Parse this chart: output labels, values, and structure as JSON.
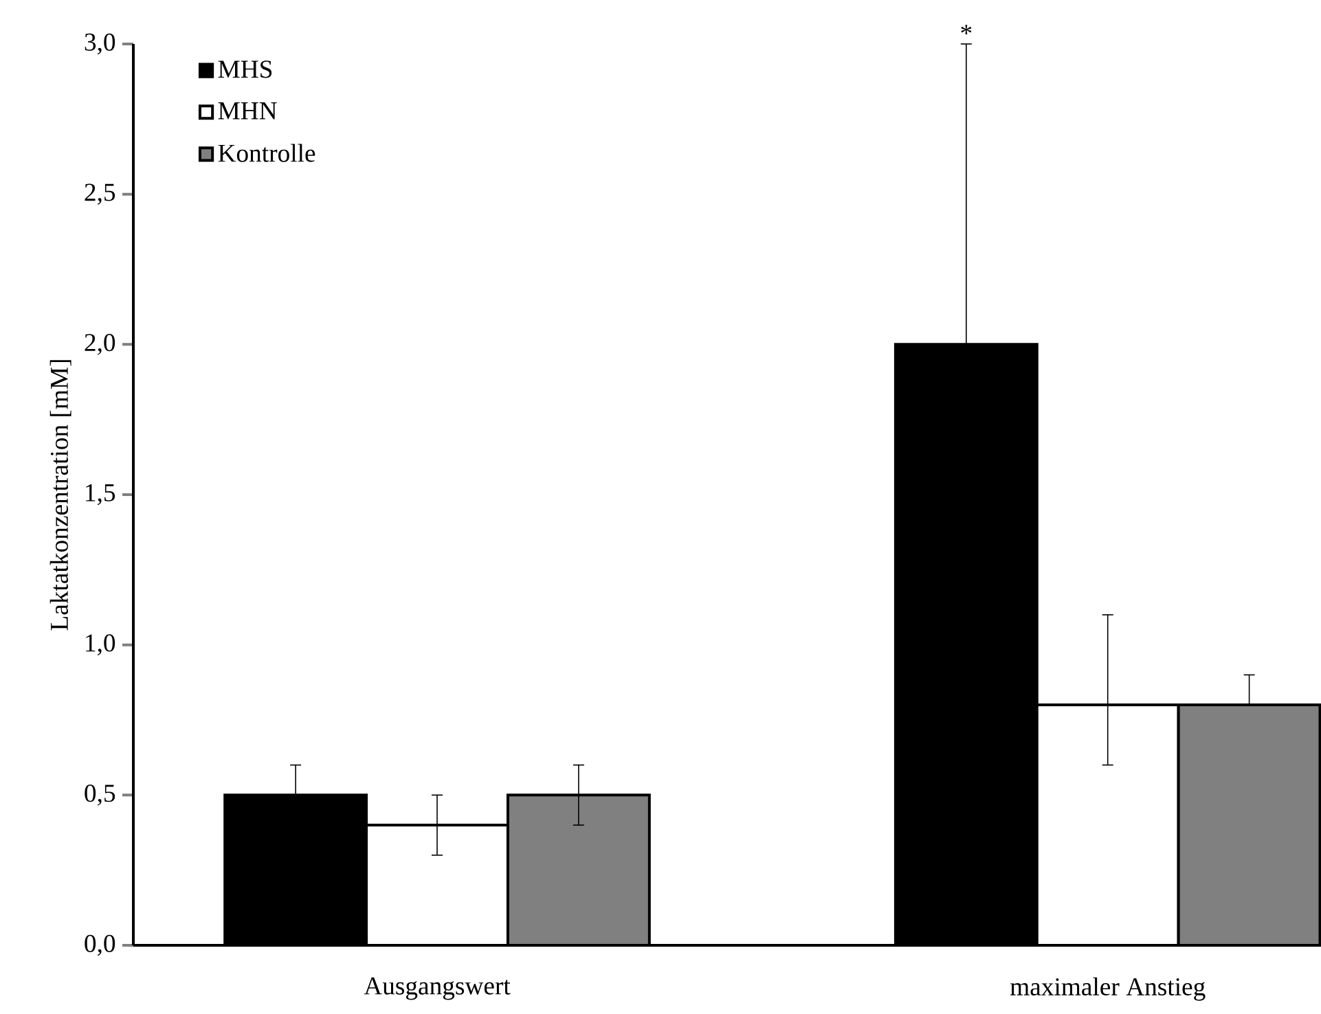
{
  "chart_data": {
    "type": "bar",
    "ylabel": "Laktatkonzentration [mM]",
    "categories": [
      "Ausgangswert",
      "maximaler Anstieg"
    ],
    "series": [
      {
        "name": "MHS",
        "color": "#000000",
        "values": [
          0.5,
          2.0
        ],
        "errors": [
          0.1,
          1.0
        ]
      },
      {
        "name": "MHN",
        "color": "#ffffff",
        "values": [
          0.4,
          0.8
        ],
        "errors": [
          0.1,
          [
            0.6,
            1.1
          ]
        ]
      },
      {
        "name": "Kontrolle",
        "color": "#808080",
        "values": [
          0.5,
          0.8
        ],
        "errors": [
          0.1,
          [
            0.8,
            0.9
          ]
        ]
      }
    ],
    "ylim": [
      0,
      3.0
    ],
    "yticks": [
      {
        "value": 0,
        "label": "0,0"
      },
      {
        "value": 0.5,
        "label": "0,5"
      },
      {
        "value": 1.0,
        "label": "1,0"
      },
      {
        "value": 1.5,
        "label": "1,5"
      },
      {
        "value": 2.0,
        "label": "2,0"
      },
      {
        "value": 2.5,
        "label": "2,5"
      },
      {
        "value": 3.0,
        "label": "3,0"
      }
    ],
    "annotations": [
      "*"
    ],
    "legend": "top left",
    "grid": false
  }
}
